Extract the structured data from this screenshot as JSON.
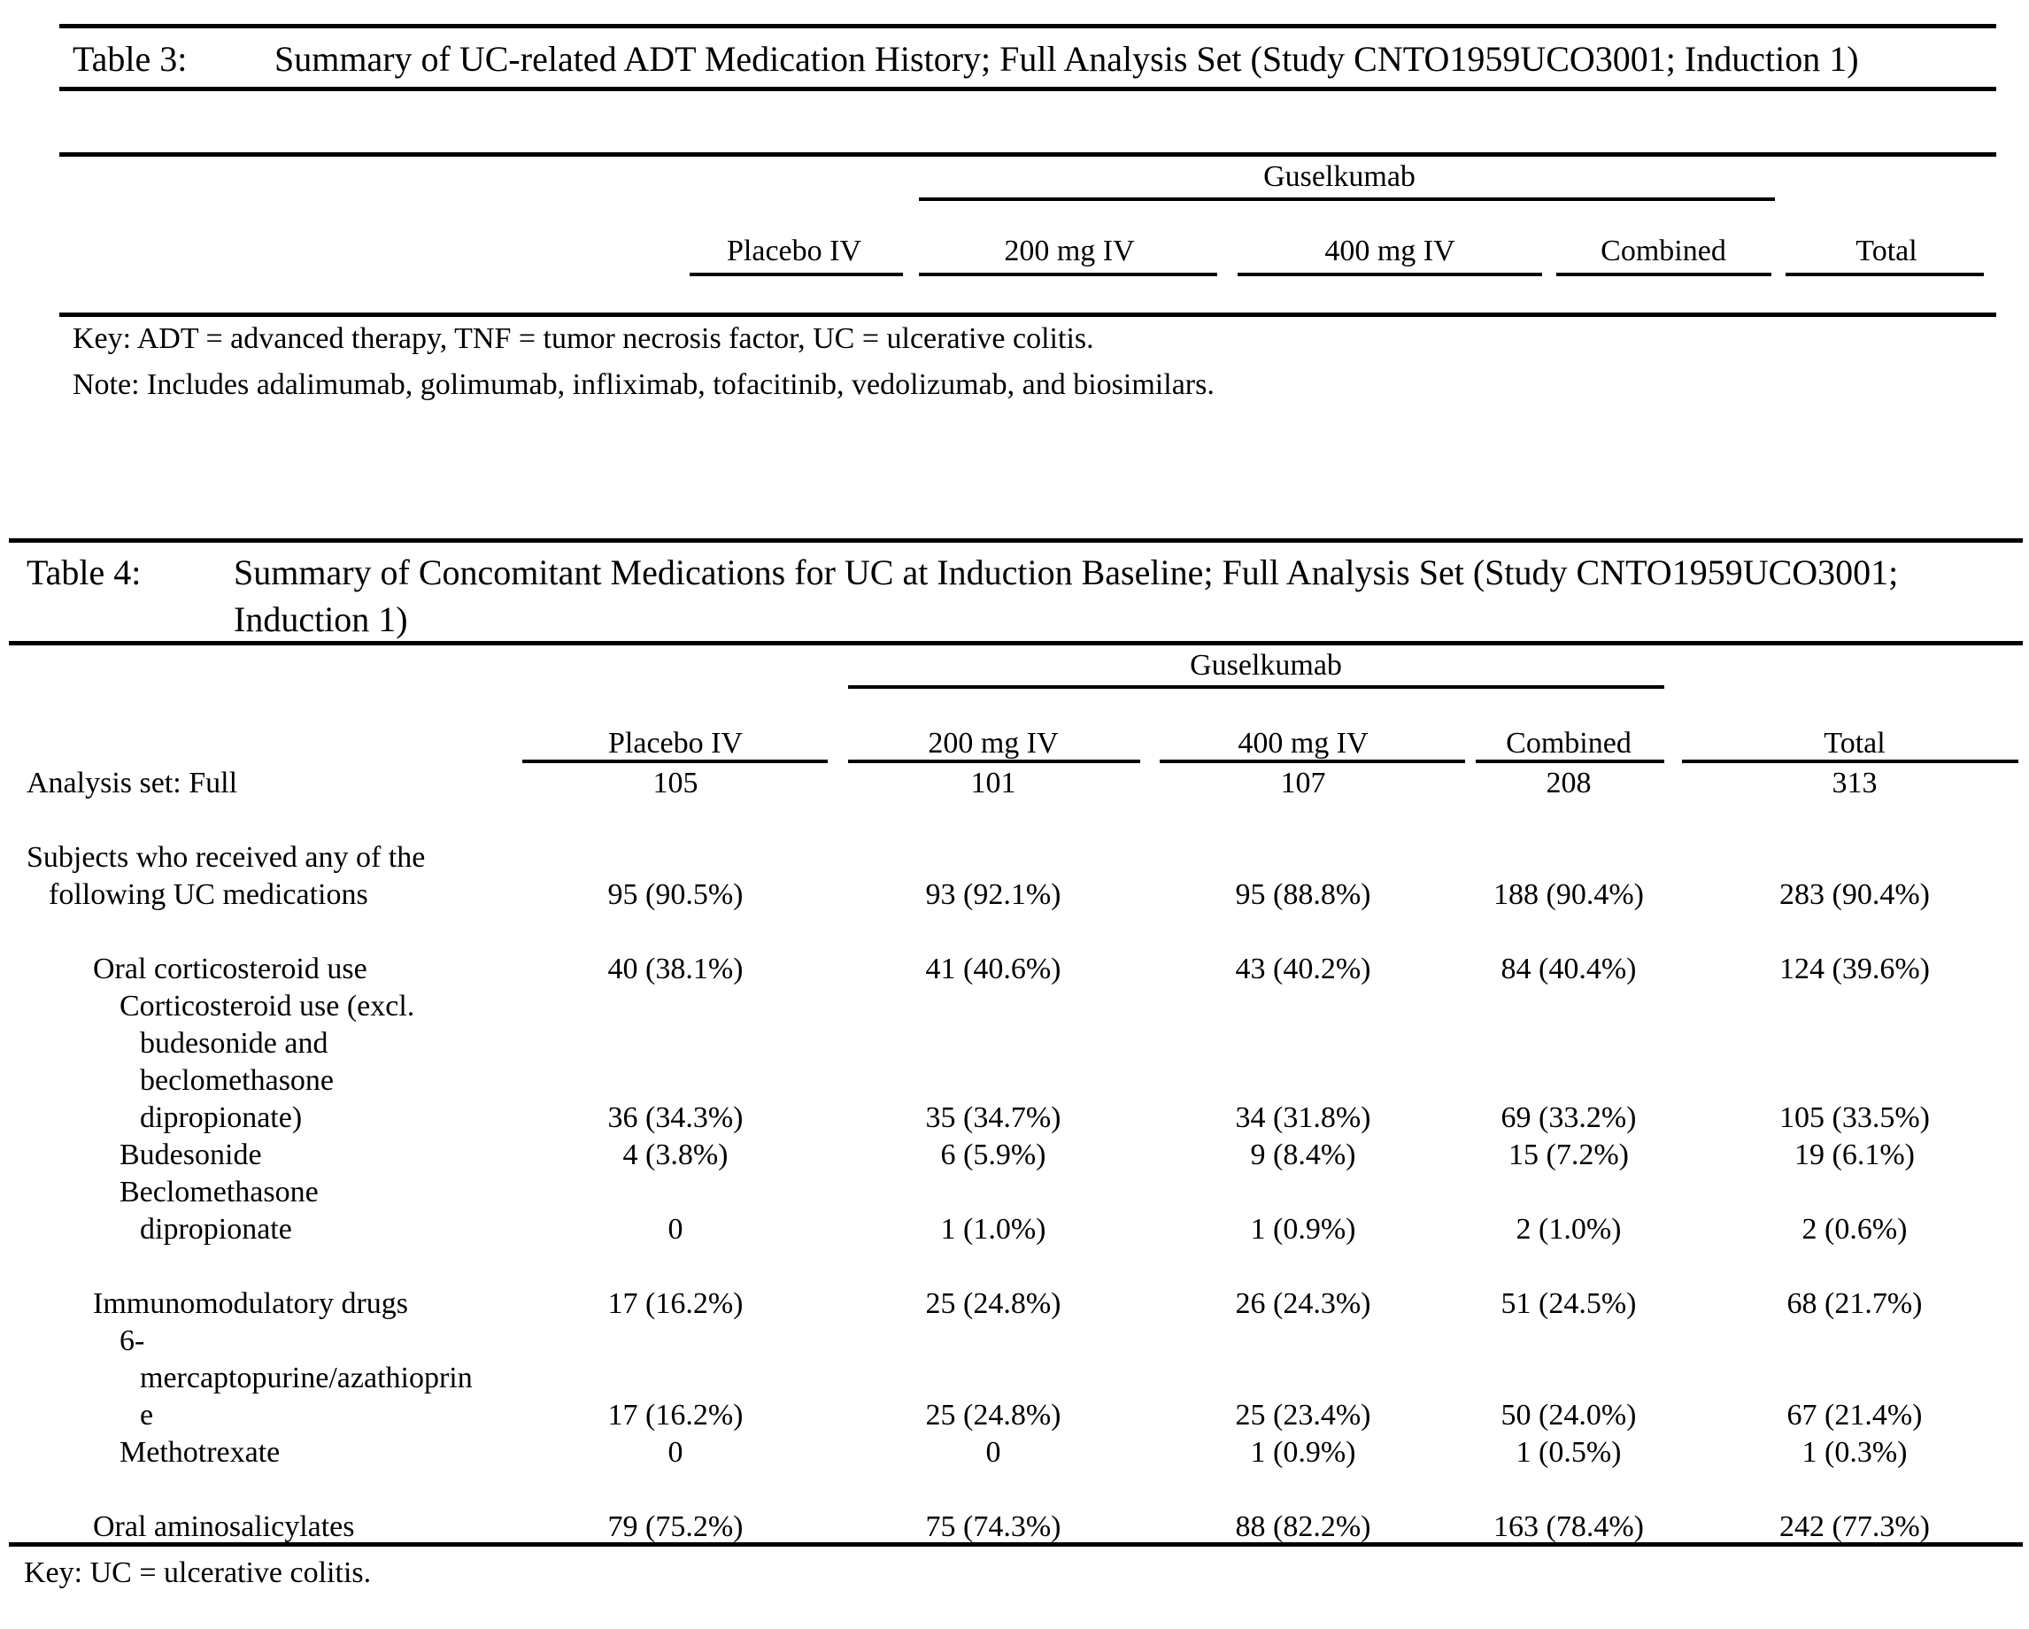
{
  "colors": {
    "page_bg": "#ffffff",
    "text": "#000000",
    "rule": "#000000"
  },
  "table3": {
    "label": "Table 3:",
    "title": "Summary of UC-related ADT Medication History; Full Analysis Set (Study CNTO1959UCO3001; Induction 1)",
    "group_header": "Guselkumab",
    "columns": [
      "Placebo IV",
      "200 mg IV",
      "400 mg IV",
      "Combined",
      "Total"
    ],
    "key": "Key: ADT = advanced therapy, TNF = tumor necrosis factor, UC = ulcerative colitis.",
    "note": "Note: Includes adalimumab, golimumab, infliximab, tofacitinib, vedolizumab, and biosimilars."
  },
  "table4": {
    "label": "Table 4:",
    "title_line1": "Summary of Concomitant Medications for UC at Induction Baseline; Full Analysis Set (Study CNTO1959UCO3001;",
    "title_line2": "Induction 1)",
    "group_header": "Guselkumab",
    "columns": [
      "Placebo IV",
      "200 mg IV",
      "400 mg IV",
      "Combined",
      "Total"
    ],
    "rows": [
      {
        "lines": [
          {
            "text": "Analysis set: Full",
            "indent": 0
          }
        ],
        "gap_before": false,
        "values": [
          "105",
          "101",
          "107",
          "208",
          "313"
        ]
      },
      {
        "lines": [
          {
            "text": "Subjects who received any of the",
            "indent": 0
          },
          {
            "text": "following UC medications",
            "indent": 1
          }
        ],
        "gap_before": true,
        "values": [
          "95 (90.5%)",
          "93 (92.1%)",
          "95 (88.8%)",
          "188 (90.4%)",
          "283 (90.4%)"
        ]
      },
      {
        "lines": [
          {
            "text": "Oral corticosteroid use",
            "indent": 2
          }
        ],
        "gap_before": true,
        "values": [
          "40 (38.1%)",
          "41 (40.6%)",
          "43 (40.2%)",
          "84 (40.4%)",
          "124 (39.6%)"
        ]
      },
      {
        "lines": [
          {
            "text": "Corticosteroid use (excl.",
            "indent": 3
          },
          {
            "text": "budesonide and",
            "indent": 4
          },
          {
            "text": "beclomethasone",
            "indent": 4
          },
          {
            "text": "dipropionate)",
            "indent": 4
          }
        ],
        "gap_before": false,
        "values": [
          "36 (34.3%)",
          "35 (34.7%)",
          "34 (31.8%)",
          "69 (33.2%)",
          "105 (33.5%)"
        ]
      },
      {
        "lines": [
          {
            "text": "Budesonide",
            "indent": 3
          }
        ],
        "gap_before": false,
        "values": [
          "4 (3.8%)",
          "6 (5.9%)",
          "9 (8.4%)",
          "15 (7.2%)",
          "19 (6.1%)"
        ]
      },
      {
        "lines": [
          {
            "text": "Beclomethasone",
            "indent": 3
          },
          {
            "text": "dipropionate",
            "indent": 4
          }
        ],
        "gap_before": false,
        "values": [
          "0",
          "1 (1.0%)",
          "1 (0.9%)",
          "2 (1.0%)",
          "2 (0.6%)"
        ]
      },
      {
        "lines": [
          {
            "text": "Immunomodulatory drugs",
            "indent": 2
          }
        ],
        "gap_before": true,
        "values": [
          "17 (16.2%)",
          "25 (24.8%)",
          "26 (24.3%)",
          "51 (24.5%)",
          "68 (21.7%)"
        ]
      },
      {
        "lines": [
          {
            "text": "6-",
            "indent": 3
          },
          {
            "text": "mercaptopurine/azathioprin",
            "indent": 4
          },
          {
            "text": "e",
            "indent": 4
          }
        ],
        "gap_before": false,
        "values": [
          "17 (16.2%)",
          "25 (24.8%)",
          "25 (23.4%)",
          "50 (24.0%)",
          "67 (21.4%)"
        ]
      },
      {
        "lines": [
          {
            "text": "Methotrexate",
            "indent": 3
          }
        ],
        "gap_before": false,
        "values": [
          "0",
          "0",
          "1 (0.9%)",
          "1 (0.5%)",
          "1 (0.3%)"
        ]
      },
      {
        "lines": [
          {
            "text": "Oral aminosalicylates",
            "indent": 2
          }
        ],
        "gap_before": true,
        "values": [
          "79 (75.2%)",
          "75 (74.3%)",
          "88 (82.2%)",
          "163 (78.4%)",
          "242 (77.3%)"
        ]
      }
    ],
    "key": "Key: UC = ulcerative colitis."
  }
}
